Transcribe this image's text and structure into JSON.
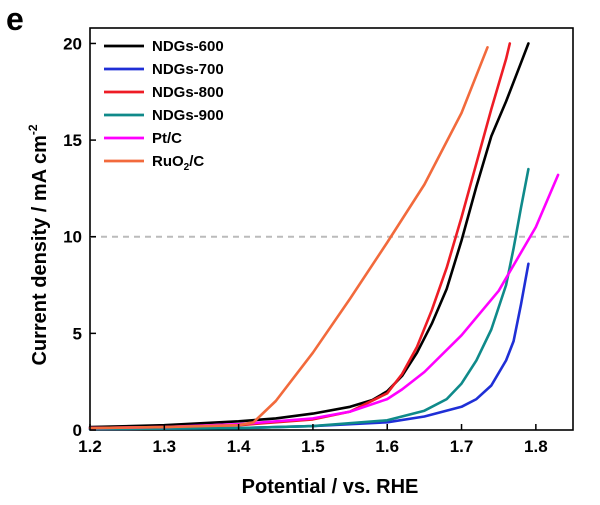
{
  "panel_label": "e",
  "chart_data": {
    "type": "line",
    "xlabel": "Potential / vs. RHE",
    "ylabel": {
      "main": "Current density / mA cm",
      "superscript": "-2"
    },
    "xlim": [
      1.2,
      1.85
    ],
    "ylim": [
      0,
      20.8
    ],
    "x_ticks": [
      1.2,
      1.3,
      1.4,
      1.5,
      1.6,
      1.7,
      1.8
    ],
    "y_ticks": [
      0,
      5,
      10,
      15,
      20
    ],
    "grid": false,
    "reference_line": {
      "y": 10,
      "style": "dashed",
      "color": "#bbbbbb"
    },
    "legend": {
      "placement": "top-left"
    },
    "series": [
      {
        "name": "NDGs-600",
        "color": "#000000",
        "points": [
          [
            1.2,
            0.15
          ],
          [
            1.3,
            0.25
          ],
          [
            1.4,
            0.45
          ],
          [
            1.45,
            0.6
          ],
          [
            1.5,
            0.85
          ],
          [
            1.55,
            1.2
          ],
          [
            1.58,
            1.55
          ],
          [
            1.6,
            2.0
          ],
          [
            1.62,
            2.8
          ],
          [
            1.64,
            4.0
          ],
          [
            1.66,
            5.5
          ],
          [
            1.68,
            7.3
          ],
          [
            1.7,
            9.8
          ],
          [
            1.72,
            12.6
          ],
          [
            1.74,
            15.2
          ],
          [
            1.76,
            17.0
          ],
          [
            1.78,
            19.0
          ],
          [
            1.79,
            20.0
          ]
        ]
      },
      {
        "name": "NDGs-700",
        "color": "#1f2fd6",
        "points": [
          [
            1.2,
            0.05
          ],
          [
            1.4,
            0.1
          ],
          [
            1.5,
            0.2
          ],
          [
            1.6,
            0.4
          ],
          [
            1.65,
            0.7
          ],
          [
            1.7,
            1.2
          ],
          [
            1.72,
            1.6
          ],
          [
            1.74,
            2.3
          ],
          [
            1.76,
            3.6
          ],
          [
            1.77,
            4.6
          ],
          [
            1.78,
            6.5
          ],
          [
            1.79,
            8.6
          ]
        ]
      },
      {
        "name": "NDGs-800",
        "color": "#ee1c25",
        "points": [
          [
            1.2,
            0.1
          ],
          [
            1.3,
            0.15
          ],
          [
            1.4,
            0.25
          ],
          [
            1.5,
            0.55
          ],
          [
            1.55,
            0.95
          ],
          [
            1.6,
            1.9
          ],
          [
            1.62,
            2.9
          ],
          [
            1.64,
            4.3
          ],
          [
            1.66,
            6.2
          ],
          [
            1.68,
            8.4
          ],
          [
            1.7,
            11.0
          ],
          [
            1.72,
            13.8
          ],
          [
            1.74,
            16.6
          ],
          [
            1.76,
            19.2
          ],
          [
            1.765,
            20.0
          ]
        ]
      },
      {
        "name": "NDGs-900",
        "color": "#0f8a8a",
        "points": [
          [
            1.2,
            0.05
          ],
          [
            1.4,
            0.1
          ],
          [
            1.5,
            0.2
          ],
          [
            1.6,
            0.5
          ],
          [
            1.65,
            1.0
          ],
          [
            1.68,
            1.6
          ],
          [
            1.7,
            2.4
          ],
          [
            1.72,
            3.6
          ],
          [
            1.74,
            5.2
          ],
          [
            1.76,
            7.5
          ],
          [
            1.77,
            9.4
          ],
          [
            1.78,
            11.5
          ],
          [
            1.79,
            13.5
          ]
        ]
      },
      {
        "name": "Pt/C",
        "color": "#ff00ff",
        "points": [
          [
            1.2,
            0.1
          ],
          [
            1.3,
            0.15
          ],
          [
            1.4,
            0.3
          ],
          [
            1.5,
            0.6
          ],
          [
            1.55,
            0.95
          ],
          [
            1.6,
            1.6
          ],
          [
            1.62,
            2.1
          ],
          [
            1.65,
            3.0
          ],
          [
            1.7,
            4.9
          ],
          [
            1.75,
            7.2
          ],
          [
            1.8,
            10.5
          ],
          [
            1.83,
            13.2
          ]
        ]
      },
      {
        "name": "RuO2/C",
        "label_main": "RuO",
        "label_sub": "2",
        "label_tail": "/C",
        "color": "#f26a3c",
        "points": [
          [
            1.2,
            0.1
          ],
          [
            1.3,
            0.15
          ],
          [
            1.4,
            0.25
          ],
          [
            1.42,
            0.4
          ],
          [
            1.45,
            1.5
          ],
          [
            1.5,
            4.0
          ],
          [
            1.55,
            6.8
          ],
          [
            1.6,
            9.7
          ],
          [
            1.65,
            12.7
          ],
          [
            1.7,
            16.4
          ],
          [
            1.735,
            19.8
          ]
        ]
      }
    ]
  }
}
